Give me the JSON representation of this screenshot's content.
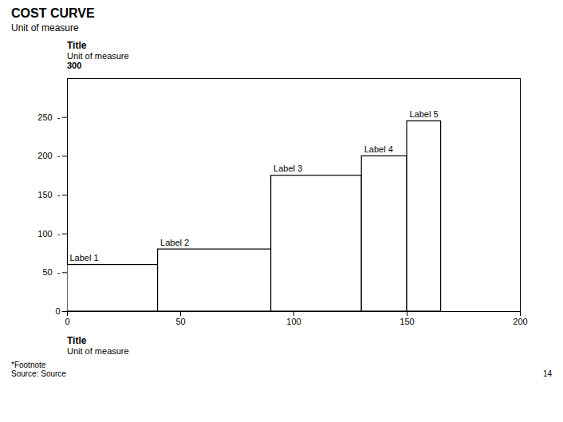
{
  "chart_data": {
    "type": "bar",
    "title": "COST CURVE",
    "subtitle": "Unit of measure",
    "y_label": "Title",
    "y_label_unit": "Unit of measure",
    "y_top_label": "300",
    "x_label": "Title",
    "x_label_unit": "Unit of measure",
    "footnote": "*Footnote",
    "source": "Source: Source",
    "page_number": "14",
    "bars": [
      {
        "label": "Label 1",
        "x_start": 0,
        "x_end": 40,
        "value": 60
      },
      {
        "label": "Label 2",
        "x_start": 40,
        "x_end": 90,
        "value": 80
      },
      {
        "label": "Label 3",
        "x_start": 90,
        "x_end": 130,
        "value": 175
      },
      {
        "label": "Label 4",
        "x_start": 130,
        "x_end": 150,
        "value": 200
      },
      {
        "label": "Label 5",
        "x_start": 150,
        "x_end": 165,
        "value": 245
      }
    ],
    "xlim": [
      0,
      200
    ],
    "ylim": [
      0,
      300
    ],
    "xticks": [
      0,
      50,
      100,
      150,
      200
    ],
    "yticks": [
      0,
      {
        "value": 50,
        "label": "50  -"
      },
      {
        "value": 100,
        "label": "100  -"
      },
      {
        "value": 150,
        "label": "150  -"
      },
      {
        "value": 200,
        "label": "200  -"
      },
      {
        "value": 250,
        "label": "250  -"
      }
    ],
    "color": "#ffffff",
    "grid": false
  }
}
